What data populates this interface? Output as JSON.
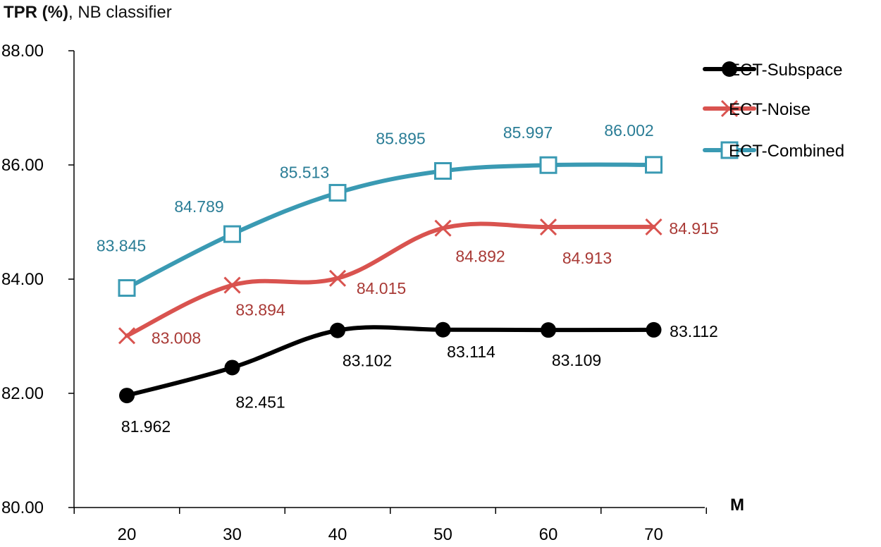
{
  "chart_data": {
    "type": "line",
    "title_bold": "TPR (%)",
    "title_rest": ", NB classifier",
    "xlabel": "M",
    "ylabel": "TPR (%)",
    "x": [
      20,
      30,
      40,
      50,
      60,
      70
    ],
    "ylim": [
      80,
      88
    ],
    "yticks": [
      "80.00",
      "82.00",
      "84.00",
      "86.00",
      "88.00"
    ],
    "ytick_values": [
      80,
      82,
      84,
      86,
      88
    ],
    "grid": false,
    "legend_position": "top-right",
    "series": [
      {
        "name": "ECT-Subspace",
        "color": "#000000",
        "label_color": "#000000",
        "marker": "circle",
        "values": [
          81.962,
          82.451,
          83.102,
          83.114,
          83.109,
          83.112
        ],
        "labels": [
          "81.962",
          "82.451",
          "83.102",
          "83.114",
          "83.109",
          "83.112"
        ]
      },
      {
        "name": "ECT-Noise",
        "color": "#d9534f",
        "label_color": "#a93a36",
        "marker": "x",
        "values": [
          83.008,
          83.894,
          84.015,
          84.892,
          84.913,
          84.915
        ],
        "labels": [
          "83.008",
          "83.894",
          "84.015",
          "84.892",
          "84.913",
          "84.915"
        ]
      },
      {
        "name": "ECT-Combined",
        "color": "#3a9ab3",
        "label_color": "#2a7d96",
        "marker": "square",
        "values": [
          83.845,
          84.789,
          85.513,
          85.895,
          85.997,
          86.002
        ],
        "labels": [
          "83.845",
          "84.789",
          "85.513",
          "85.895",
          "85.997",
          "86.002"
        ]
      }
    ]
  }
}
